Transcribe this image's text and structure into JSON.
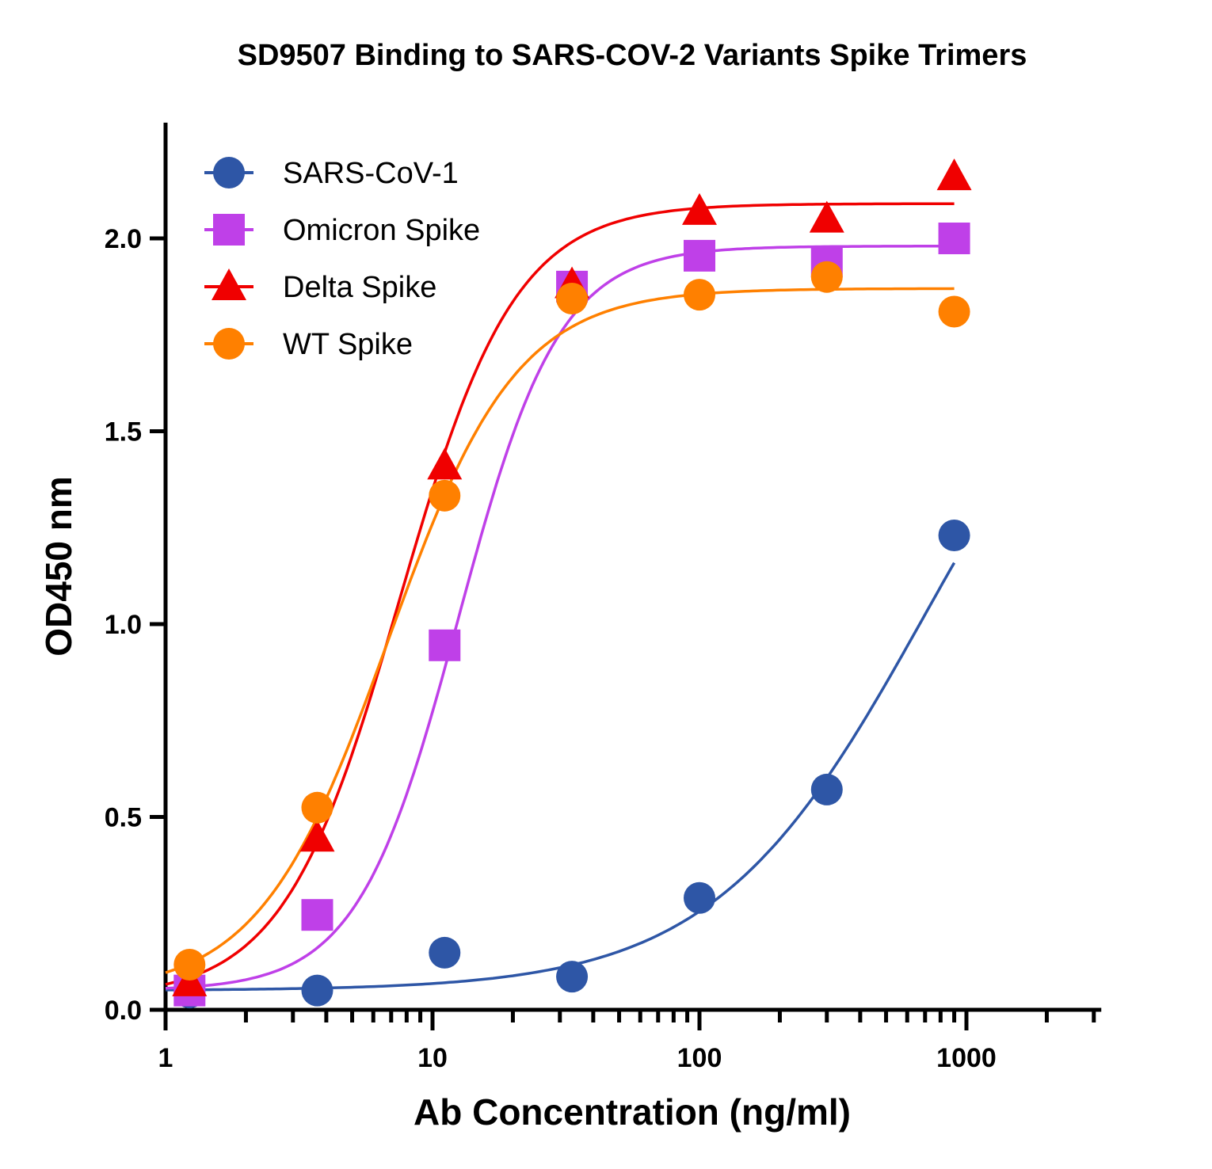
{
  "chart_data": {
    "type": "scatter",
    "title": "SD9507 Binding to SARS-COV-2 Variants Spike Trimers",
    "xlabel": "Ab Concentration (ng/ml)",
    "ylabel": "OD450 nm",
    "xscale": "log",
    "xlim": [
      1,
      3200
    ],
    "ylim": [
      0,
      2.3
    ],
    "xticks": [
      1,
      10,
      100,
      1000
    ],
    "xtick_labels": [
      "1",
      "10",
      "100",
      "1000"
    ],
    "yticks": [
      0,
      0.5,
      1.0,
      1.5,
      2.0
    ],
    "ytick_labels": [
      "0.0",
      "0.5",
      "1.0",
      "1.5",
      "2.0"
    ],
    "grid": false,
    "legend_position": "top-left",
    "x": [
      1.23,
      3.7,
      11.1,
      33.3,
      100,
      300,
      900
    ],
    "series": [
      {
        "name": "SARS-CoV-1",
        "marker": "circle",
        "color": "#2E56A6",
        "values": [
          0.045,
          0.05,
          0.148,
          0.086,
          0.29,
          0.571,
          1.23
        ],
        "fit": {
          "model": "4PL",
          "bottom": 0.05,
          "top": 2.0,
          "ec50": 700,
          "hill": 1.1
        }
      },
      {
        "name": "Omicron Spike",
        "marker": "square",
        "color": "#BF40E8",
        "values": [
          0.05,
          0.246,
          0.945,
          1.875,
          1.955,
          1.94,
          2.0
        ],
        "fit": {
          "model": "4PL",
          "bottom": 0.05,
          "top": 1.98,
          "ec50": 12.5,
          "hill": 2.3
        }
      },
      {
        "name": "Delta Spike",
        "marker": "triangle",
        "color": "#F00000",
        "values": [
          0.07,
          0.445,
          1.41,
          1.88,
          2.07,
          2.05,
          2.16
        ],
        "fit": {
          "model": "4PL",
          "bottom": 0.03,
          "top": 2.09,
          "ec50": 7.5,
          "hill": 2.0
        }
      },
      {
        "name": "WT Spike",
        "marker": "circle",
        "color": "#FF8000",
        "values": [
          0.117,
          0.524,
          1.333,
          1.844,
          1.854,
          1.9,
          1.81
        ],
        "fit": {
          "model": "4PL",
          "bottom": 0.04,
          "top": 1.87,
          "ec50": 6.8,
          "hill": 1.8
        }
      }
    ]
  }
}
